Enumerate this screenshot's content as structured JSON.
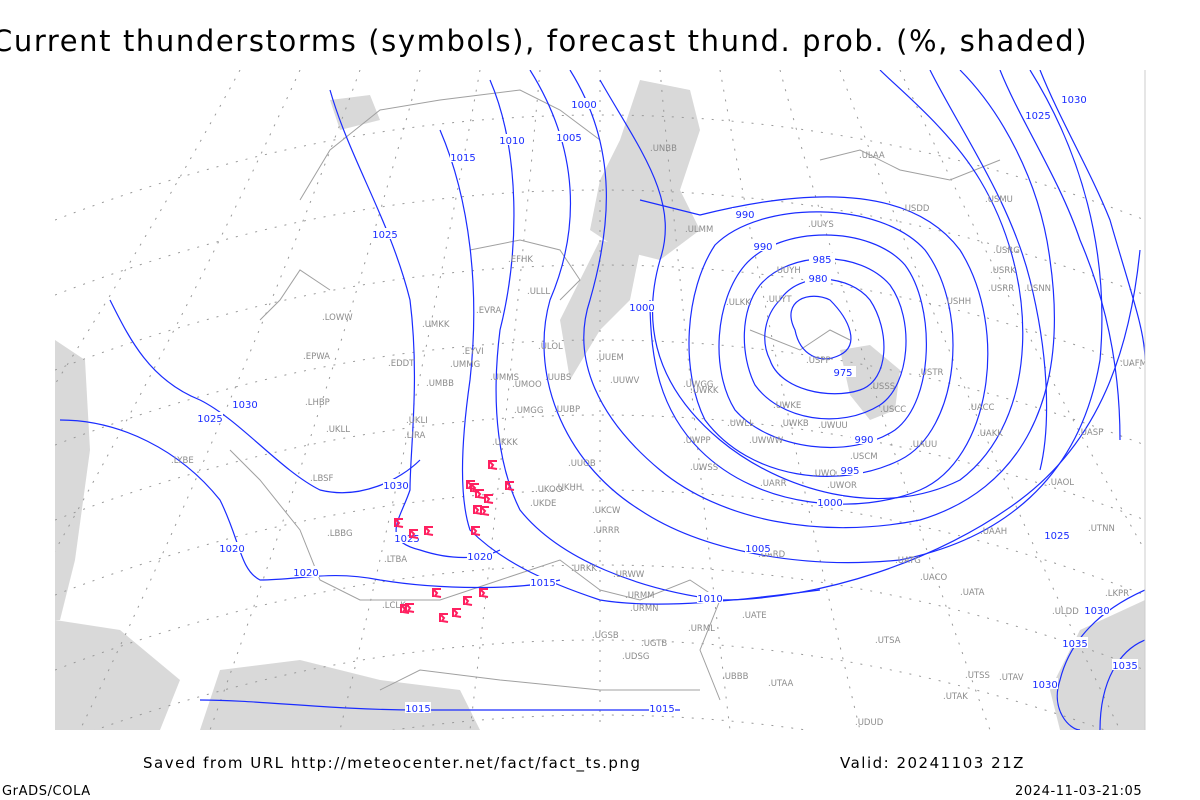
{
  "title": "Current thunderstorms (symbols), forecast thund. prob. (%, shaded)",
  "footer": {
    "saved_from": "Saved from URL http://meteocenter.net/fact/fact_ts.png",
    "valid": "Valid: 20241103 21Z",
    "software": "GrADS/COLA",
    "timestamp": "2024-11-03-21:05"
  },
  "colors": {
    "isobar": "#1a2cff",
    "station": "#8c8c8c",
    "shading": "#d9d9d9",
    "storm_symbol": "#ff2060",
    "coast": "#a0a0a0"
  },
  "map": {
    "isobar_labels": [
      "1000",
      "1005",
      "1010",
      "1015",
      "1025",
      "990",
      "990",
      "985",
      "980",
      "975",
      "990",
      "995",
      "1000",
      "1005",
      "1010",
      "1000",
      "1030",
      "1025",
      "1030",
      "1025",
      "1020",
      "1020",
      "1020",
      "1015",
      "1015",
      "1015",
      "1025",
      "1030",
      "1025",
      "1030",
      "1035",
      "1030",
      "1035"
    ],
    "low_pressure_min_label": "975",
    "stations": [
      "ULLL",
      "EFHK",
      "EVRA",
      "ULOL",
      "UMKK",
      "EYVI",
      "UMMG",
      "UMBB",
      "UMMS",
      "UMOO",
      "UUBS",
      "UMGG",
      "UUBP",
      "UKKK",
      "UUOB",
      "UKHH",
      "UKDE",
      "UKOO",
      "UKCW",
      "URRR",
      "URKK",
      "URWW",
      "URMM",
      "URMN",
      "URML",
      "UATE",
      "UGSB",
      "UGTB",
      "UDSG",
      "UBBB",
      "UUEM",
      "UUWV",
      "UWGG",
      "UWPP",
      "UWSS",
      "UWKK",
      "UWLL",
      "UWWW",
      "UWKE",
      "UWKB",
      "UWUU",
      "UWOO",
      "UARR",
      "UWOR",
      "USSS",
      "USCC",
      "USCM",
      "UAUU",
      "USTR",
      "USHH",
      "USRR",
      "USRK",
      "USRG",
      "USNN",
      "USMU",
      "USDD",
      "ULKK",
      "UUYT",
      "UUYH",
      "UUYS",
      "USPP",
      "UACC",
      "UAKK",
      "UASP",
      "UAOL",
      "UACO",
      "UATA",
      "UATG",
      "UARD",
      "UAAH",
      "UTNN",
      "UTSA",
      "UTSS",
      "UTAV",
      "UTAK",
      "UTAA",
      "UDUD",
      "ULDD",
      "ULAA",
      "ULMM",
      "UNBB",
      "UNNT",
      "UAFM",
      "LKPR",
      "EPWA",
      "EDDT",
      "LOWW",
      "LHBP",
      "UKLL",
      "UKLI",
      "LIRA",
      "LYBE",
      "LBSF",
      "LBBG",
      "LTBA",
      "LCLK"
    ],
    "storm_symbol_count": 19
  }
}
